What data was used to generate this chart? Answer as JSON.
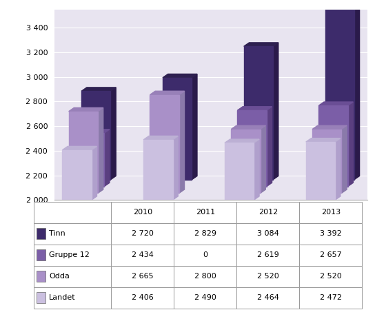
{
  "categories": [
    "2010",
    "2011",
    "2012",
    "2013"
  ],
  "series": [
    {
      "name": "Tinn",
      "values": [
        2720,
        2829,
        3084,
        3392
      ],
      "color": "#3D2B6B",
      "right_color": "#2A1A4A",
      "top_color": "#2E2050"
    },
    {
      "name": "Gruppe 12",
      "values": [
        2434,
        0,
        2619,
        2657
      ],
      "color": "#7B5EA7",
      "right_color": "#5A3F80",
      "top_color": "#6A4E95"
    },
    {
      "name": "Odda",
      "values": [
        2665,
        2800,
        2520,
        2520
      ],
      "color": "#A990C8",
      "right_color": "#8A7AAA",
      "top_color": "#9880B8"
    },
    {
      "name": "Landet",
      "values": [
        2406,
        2490,
        2464,
        2472
      ],
      "color": "#CBC0E0",
      "right_color": "#B0A0CC",
      "top_color": "#BCB0D4"
    }
  ],
  "ylim": [
    2000,
    3500
  ],
  "yticks": [
    2000,
    2200,
    2400,
    2600,
    2800,
    3000,
    3200,
    3400
  ],
  "ytick_labels": [
    "2 000",
    "2 200",
    "2 400",
    "2 600",
    "2 800",
    "3 000",
    "3 200",
    "3 400"
  ],
  "chart_bg": "#E8E4F0",
  "table_values": [
    [
      "Tinn",
      "2 720",
      "2 829",
      "3 084",
      "3 392"
    ],
    [
      "Gruppe 12",
      "2 434",
      "0",
      "2 619",
      "2 657"
    ],
    [
      "Odda",
      "2 665",
      "2 800",
      "2 520",
      "2 520"
    ],
    [
      "Landet",
      "2 406",
      "2 490",
      "2 464",
      "2 472"
    ]
  ],
  "col_headers": [
    "",
    "2010",
    "2011",
    "2012",
    "2013"
  ],
  "legend_colors": [
    "#3D2B6B",
    "#7B5EA7",
    "#A990C8",
    "#CBC0E0"
  ],
  "legend_names": [
    "Tinn",
    "Gruppe 12",
    "Odda",
    "Landet"
  ],
  "fig_width": 5.44,
  "fig_height": 4.5
}
